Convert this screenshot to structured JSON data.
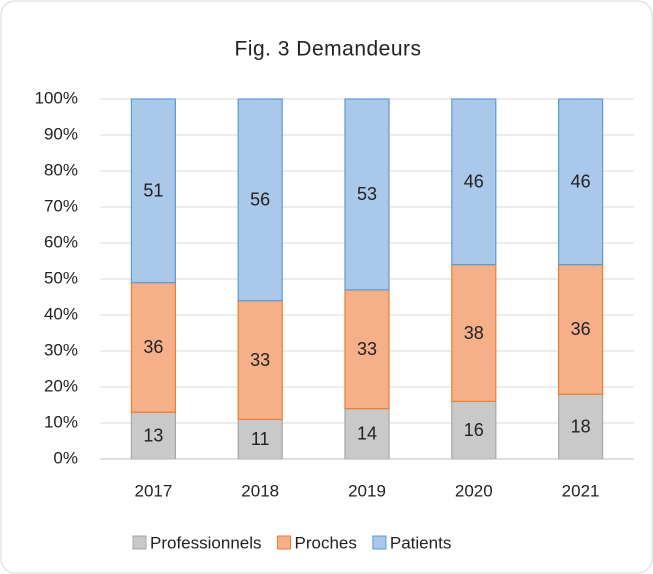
{
  "chart_data": {
    "type": "stacked_bar_100",
    "title": "Fig. 3 Demandeurs",
    "categories": [
      "2017",
      "2018",
      "2019",
      "2020",
      "2021"
    ],
    "series": [
      {
        "name": "Professionnels",
        "color": "#c9c9c9",
        "border": "#a5a5a5",
        "values": [
          13,
          11,
          14,
          16,
          18
        ]
      },
      {
        "name": "Proches",
        "color": "#f5b08a",
        "border": "#ed7d31",
        "values": [
          36,
          33,
          33,
          38,
          36
        ]
      },
      {
        "name": "Patients",
        "color": "#a9c8ea",
        "border": "#5b9bd5",
        "values": [
          51,
          56,
          53,
          46,
          46
        ]
      }
    ],
    "ylim": [
      0,
      100
    ],
    "yticks": [
      {
        "value": 0,
        "label": "0%"
      },
      {
        "value": 10,
        "label": "10%"
      },
      {
        "value": 20,
        "label": "20%"
      },
      {
        "value": 30,
        "label": "30%"
      },
      {
        "value": 40,
        "label": "40%"
      },
      {
        "value": 50,
        "label": "50%"
      },
      {
        "value": 60,
        "label": "60%"
      },
      {
        "value": 70,
        "label": "70%"
      },
      {
        "value": 80,
        "label": "80%"
      },
      {
        "value": 90,
        "label": "90%"
      },
      {
        "value": 100,
        "label": "100%"
      }
    ],
    "grid": true,
    "legend": "bottom"
  }
}
